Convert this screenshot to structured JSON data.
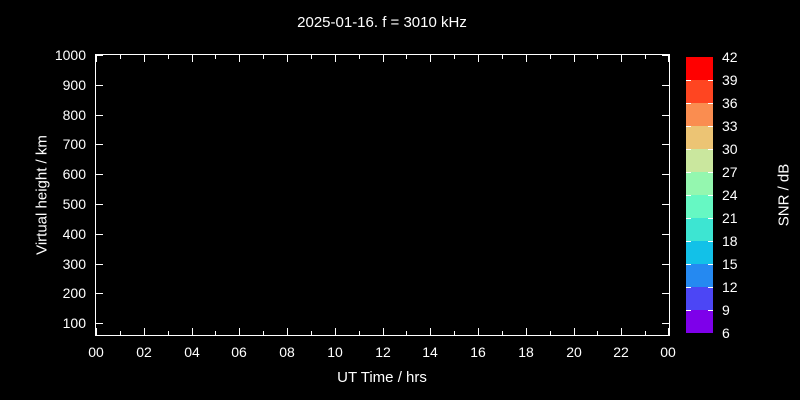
{
  "window": {
    "background": "#000000",
    "foreground": "#ffffff"
  },
  "chart_data": {
    "type": "heatmap",
    "title": "2025-01-16. f = 3010 kHz",
    "xlabel": "UT Time / hrs",
    "ylabel": "Virtual height / km",
    "grid": false,
    "plot_background": "#000000",
    "axis_color": "#ffffff",
    "xlim_hours": [
      0,
      24
    ],
    "x_major_tick_hours": [
      0,
      2,
      4,
      6,
      8,
      10,
      12,
      14,
      16,
      18,
      20,
      22,
      24
    ],
    "x_major_tick_labels": [
      "00",
      "02",
      "04",
      "06",
      "08",
      "10",
      "12",
      "14",
      "16",
      "18",
      "20",
      "22",
      "00"
    ],
    "x_minor_tick_hours": [
      1,
      3,
      5,
      7,
      9,
      11,
      13,
      15,
      17,
      19,
      21,
      23
    ],
    "ylim": [
      60,
      1000
    ],
    "y_tick_values": [
      100,
      200,
      300,
      400,
      500,
      600,
      700,
      800,
      900,
      1000
    ],
    "y_tick_labels": [
      "100",
      "200",
      "300",
      "400",
      "500",
      "600",
      "700",
      "800",
      "900",
      "1000"
    ],
    "data_points": [],
    "colorbar": {
      "label": "SNR / dB",
      "value_range": [
        6,
        42
      ],
      "value_step": 3,
      "tick_labels_top_to_bottom": [
        "42",
        "39",
        "36",
        "33",
        "30",
        "27",
        "24",
        "21",
        "18",
        "15",
        "12",
        "9",
        "6"
      ],
      "segment_colors_top_to_bottom": [
        "#ff0000",
        "#ff4521",
        "#fa8d50",
        "#ecc474",
        "#cae79e",
        "#94f7af",
        "#66f8c3",
        "#3de5d2",
        "#12c1e8",
        "#2589f1",
        "#4c46f5",
        "#7e00ea"
      ]
    }
  }
}
